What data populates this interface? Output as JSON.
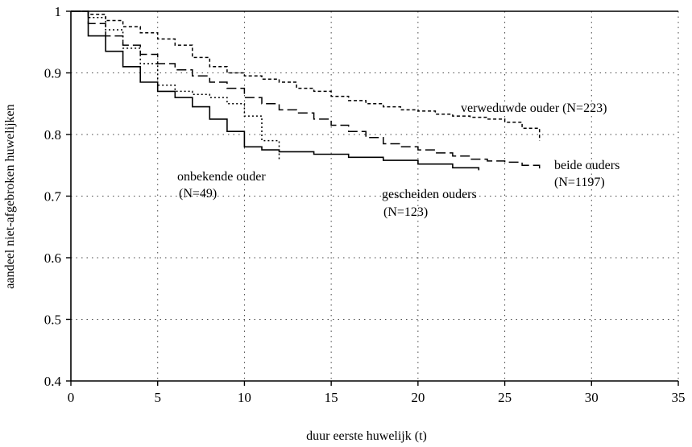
{
  "chart_data": {
    "type": "line",
    "title": "",
    "xlabel": "duur eerste huwelijk (t)",
    "ylabel": "aandeel niet-afgebroken huwelijken",
    "xlim": [
      0,
      35
    ],
    "ylim": [
      0.4,
      1
    ],
    "x_ticks": [
      0,
      5,
      10,
      15,
      20,
      25,
      30,
      35
    ],
    "x_tick_labels": [
      "0",
      "5",
      "10",
      "15",
      "20",
      "25",
      "30",
      "35"
    ],
    "y_ticks": [
      0.4,
      0.5,
      0.6,
      0.7,
      0.8,
      0.9,
      1
    ],
    "y_tick_labels": [
      "0.4",
      "0.5",
      "0.6",
      "0.7",
      "0.8",
      "0.9",
      "1"
    ],
    "grid": "dotted",
    "legend": "none (inline annotations)",
    "series": [
      {
        "name": "verweduwde ouder (N=223)",
        "style": "short-dash",
        "points": [
          [
            0,
            1
          ],
          [
            1,
            0.995
          ],
          [
            2,
            0.985
          ],
          [
            3,
            0.975
          ],
          [
            4,
            0.965
          ],
          [
            5,
            0.955
          ],
          [
            6,
            0.945
          ],
          [
            7,
            0.925
          ],
          [
            8,
            0.91
          ],
          [
            9,
            0.9
          ],
          [
            10,
            0.895
          ],
          [
            11,
            0.89
          ],
          [
            12,
            0.885
          ],
          [
            13,
            0.875
          ],
          [
            14,
            0.87
          ],
          [
            15,
            0.862
          ],
          [
            16,
            0.855
          ],
          [
            17,
            0.85
          ],
          [
            18,
            0.845
          ],
          [
            19,
            0.84
          ],
          [
            20,
            0.838
          ],
          [
            21,
            0.833
          ],
          [
            22,
            0.83
          ],
          [
            23,
            0.828
          ],
          [
            24,
            0.825
          ],
          [
            25,
            0.82
          ],
          [
            26,
            0.81
          ],
          [
            27,
            0.79
          ]
        ]
      },
      {
        "name": "beide ouders (N=1197)",
        "style": "long-dash",
        "points": [
          [
            0,
            1
          ],
          [
            1,
            0.98
          ],
          [
            2,
            0.96
          ],
          [
            3,
            0.945
          ],
          [
            4,
            0.93
          ],
          [
            5,
            0.915
          ],
          [
            6,
            0.905
          ],
          [
            7,
            0.895
          ],
          [
            8,
            0.885
          ],
          [
            9,
            0.875
          ],
          [
            10,
            0.86
          ],
          [
            11,
            0.85
          ],
          [
            12,
            0.84
          ],
          [
            13,
            0.835
          ],
          [
            14,
            0.825
          ],
          [
            15,
            0.815
          ],
          [
            16,
            0.805
          ],
          [
            17,
            0.795
          ],
          [
            18,
            0.785
          ],
          [
            19,
            0.78
          ],
          [
            20,
            0.775
          ],
          [
            21,
            0.77
          ],
          [
            22,
            0.765
          ],
          [
            23,
            0.76
          ],
          [
            24,
            0.757
          ],
          [
            25,
            0.755
          ],
          [
            26,
            0.75
          ],
          [
            27,
            0.745
          ]
        ]
      },
      {
        "name": "gescheiden ouders (N=123)",
        "style": "solid",
        "points": [
          [
            0,
            1
          ],
          [
            1,
            0.96
          ],
          [
            2,
            0.935
          ],
          [
            3,
            0.91
          ],
          [
            4,
            0.885
          ],
          [
            5,
            0.87
          ],
          [
            6,
            0.86
          ],
          [
            7,
            0.845
          ],
          [
            8,
            0.825
          ],
          [
            9,
            0.805
          ],
          [
            10,
            0.78
          ],
          [
            11,
            0.775
          ],
          [
            12,
            0.772
          ],
          [
            14,
            0.768
          ],
          [
            16,
            0.763
          ],
          [
            18,
            0.758
          ],
          [
            20,
            0.752
          ],
          [
            22,
            0.746
          ],
          [
            23.5,
            0.742
          ]
        ]
      },
      {
        "name": "onbekende ouder (N=49)",
        "style": "dotted",
        "points": [
          [
            0,
            1
          ],
          [
            1,
            0.99
          ],
          [
            2,
            0.97
          ],
          [
            3,
            0.94
          ],
          [
            4,
            0.915
          ],
          [
            5,
            0.88
          ],
          [
            6,
            0.87
          ],
          [
            7,
            0.865
          ],
          [
            8,
            0.86
          ],
          [
            9,
            0.85
          ],
          [
            10,
            0.83
          ],
          [
            11,
            0.79
          ],
          [
            12,
            0.76
          ]
        ]
      }
    ],
    "annotations": [
      {
        "text": "verweduwde ouder (N=223)"
      },
      {
        "text": "beide ouders"
      },
      {
        "text": "(N=1197)"
      },
      {
        "text": "onbekende ouder"
      },
      {
        "text": "(N=49)"
      },
      {
        "text": "gescheiden ouders"
      },
      {
        "text": "(N=123)"
      }
    ]
  }
}
